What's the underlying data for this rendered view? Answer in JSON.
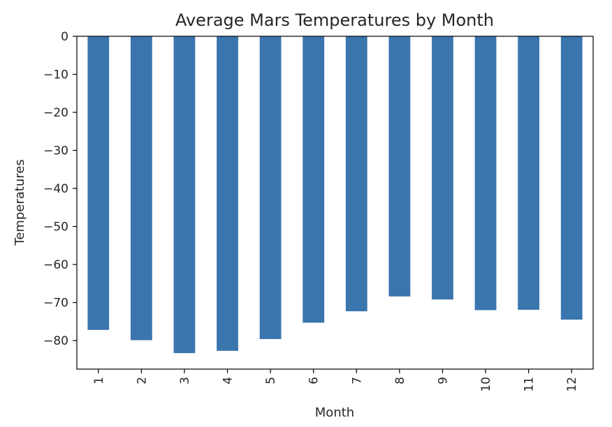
{
  "chart_data": {
    "type": "bar",
    "title": "Average Mars Temperatures by Month",
    "xlabel": "Month",
    "ylabel": "Temperatures",
    "categories": [
      "1",
      "2",
      "3",
      "4",
      "5",
      "6",
      "7",
      "8",
      "9",
      "10",
      "11",
      "12"
    ],
    "values": [
      -77.2,
      -79.9,
      -83.3,
      -82.7,
      -79.6,
      -75.3,
      -72.3,
      -68.4,
      -69.2,
      -72.0,
      -71.9,
      -74.5
    ],
    "ylim": [
      -87.5,
      0
    ],
    "yticks": [
      0,
      -10,
      -20,
      -30,
      -40,
      -50,
      -60,
      -70,
      -80
    ],
    "bar_color": "#3a75ae",
    "grid": false,
    "x_tick_rotation": "vertical"
  }
}
